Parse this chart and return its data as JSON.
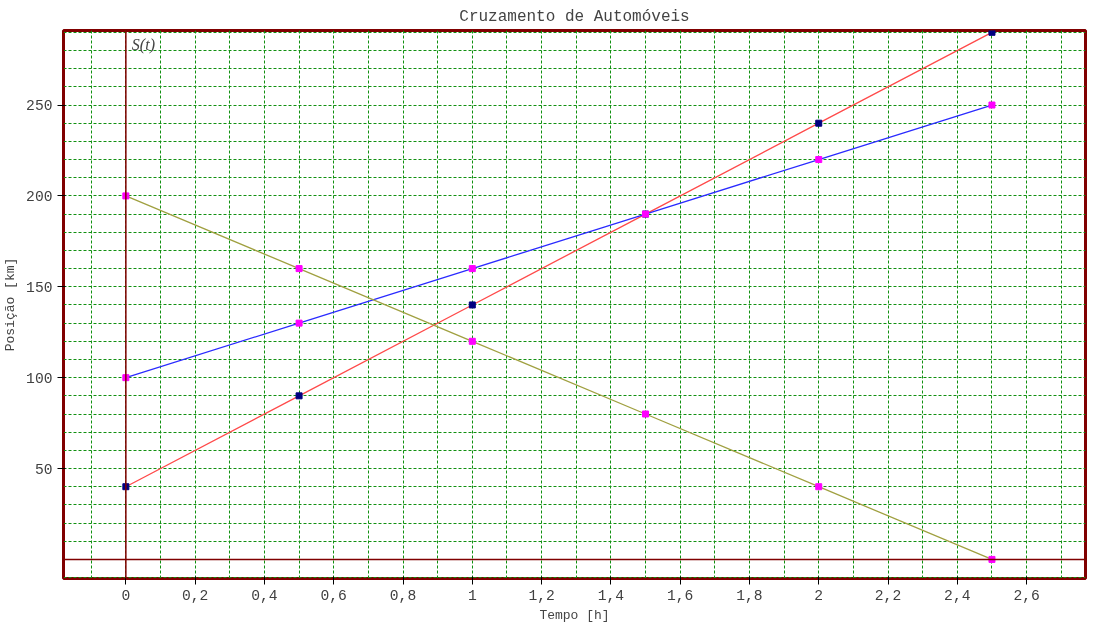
{
  "chart_data": {
    "type": "line",
    "title": "Cruzamento de Automóveis",
    "xlabel": "Tempo [h]",
    "ylabel": "Posição [km]",
    "x": [
      0,
      0.5,
      1,
      1.5,
      2,
      2.5
    ],
    "series": [
      {
        "color": "#ff4a4a",
        "colors": [
          "#000080",
          "#000080",
          "#000080",
          "#000080",
          "#000080",
          "#000080"
        ],
        "values": [
          40,
          90,
          140,
          190,
          240,
          290
        ]
      },
      {
        "color": "#2a2aff",
        "colors": [
          "#ff00ff",
          "#ff00ff",
          "#ff00ff",
          "#ff00ff",
          "#ff00ff",
          "#ff00ff"
        ],
        "values": [
          100,
          130,
          160,
          190,
          220,
          250
        ]
      },
      {
        "color": "#a0a040",
        "colors": [
          "#ff00ff",
          "#ff00ff",
          "#ff00ff",
          "#ff00ff",
          "#ff00ff",
          "#ff00ff"
        ],
        "values": [
          200,
          160,
          120,
          80,
          40,
          0
        ]
      }
    ],
    "xlim": [
      -0.18,
      2.77
    ],
    "ylim": [
      -10.5,
      291
    ],
    "xticks": [
      0,
      {
        "value": 0.2,
        "label": "0,2"
      },
      {
        "value": 0.4,
        "label": "0,4"
      },
      {
        "value": 0.6,
        "label": "0,6"
      },
      {
        "value": 0.8,
        "label": "0,8"
      },
      1,
      {
        "value": 1.2,
        "label": "1,2"
      },
      {
        "value": 1.4,
        "label": "1,4"
      },
      {
        "value": 1.6,
        "label": "1,6"
      },
      {
        "value": 1.8,
        "label": "1,8"
      },
      2,
      {
        "value": 2.2,
        "label": "2,2"
      },
      {
        "value": 2.4,
        "label": "2,4"
      },
      {
        "value": 2.6,
        "label": "2,6"
      }
    ],
    "yticks": [
      50,
      100,
      150,
      200,
      250
    ],
    "ref_lines": [
      {
        "axis": "x",
        "value": 0,
        "label": "S(t)",
        "color": "#800000"
      },
      {
        "axis": "y",
        "value": 0,
        "label": null,
        "color": "#800000"
      }
    ],
    "grid": true,
    "marker": "square",
    "line_style": "solid"
  }
}
